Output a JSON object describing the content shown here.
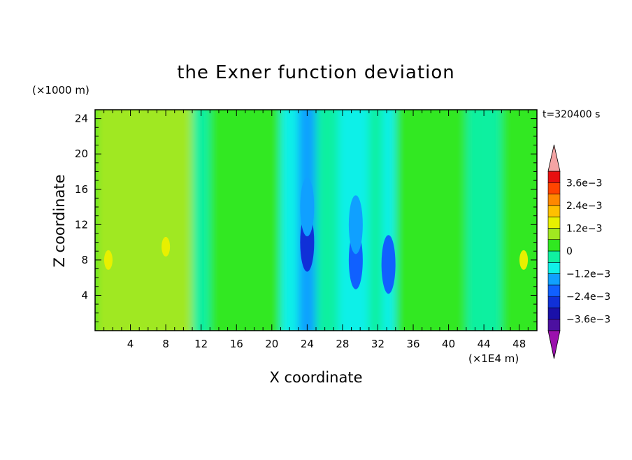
{
  "chart_data": {
    "type": "heatmap",
    "title": "the Exner function deviation",
    "xlabel": "X coordinate",
    "ylabel": "Z coordinate",
    "x_unit": "(×1E4 m)",
    "y_unit": "(×1000 m)",
    "time_label": "t=320400 s",
    "xlim": [
      0,
      50
    ],
    "ylim": [
      0,
      25
    ],
    "x_ticks": [
      4,
      8,
      12,
      16,
      20,
      24,
      28,
      32,
      36,
      40,
      44,
      48
    ],
    "y_ticks": [
      4,
      8,
      12,
      16,
      20,
      24
    ],
    "colorbar": {
      "levels": [
        -0.0042,
        -0.0036,
        -0.003,
        -0.0024,
        -0.0018,
        -0.0012,
        -0.0006,
        0,
        0.0006,
        0.0012,
        0.0018,
        0.0024,
        0.003,
        0.0036,
        0.0042
      ],
      "labels": [
        "3.6e−3",
        "2.4e−3",
        "1.2e−3",
        "0",
        "−1.2e−3",
        "−2.4e−3",
        "−3.6e−3"
      ],
      "label_values": [
        0.0036,
        0.0024,
        0.0012,
        0,
        -0.0012,
        -0.0024,
        -0.0036
      ],
      "colors": [
        "#9b10ad",
        "#4c10a0",
        "#1a10a8",
        "#1030d8",
        "#1060ff",
        "#10a0ff",
        "#10f0e8",
        "#10f0a0",
        "#30e820",
        "#a0e820",
        "#e8f000",
        "#ffc000",
        "#ff8800",
        "#ff4400",
        "#e81010",
        "#f4a4a4"
      ]
    },
    "field": {
      "x_bands": [
        {
          "x": [
            0,
            11
          ],
          "value": 0.0007
        },
        {
          "x": [
            11,
            13
          ],
          "value": -0.0003
        },
        {
          "x": [
            13,
            21
          ],
          "value": 0.0002
        },
        {
          "x": [
            21,
            23
          ],
          "value": -0.0008
        },
        {
          "x": [
            23,
            25
          ],
          "value": -0.0015
        },
        {
          "x": [
            25,
            27.5
          ],
          "value": -0.0005
        },
        {
          "x": [
            27.5,
            31
          ],
          "value": -0.001
        },
        {
          "x": [
            31,
            32.5
          ],
          "value": -0.0004
        },
        {
          "x": [
            32.5,
            34
          ],
          "value": -0.0009
        },
        {
          "x": [
            34,
            38
          ],
          "value": 0.0001
        },
        {
          "x": [
            38,
            40
          ],
          "value": 0.0004
        },
        {
          "x": [
            40,
            42
          ],
          "value": 0.0001
        },
        {
          "x": [
            42,
            43.5
          ],
          "value": -0.0003
        },
        {
          "x": [
            43.5,
            46
          ],
          "value": -0.0006
        },
        {
          "x": [
            46,
            50
          ],
          "value": 0.0005
        }
      ],
      "anomalies": [
        {
          "x": 24,
          "z": 10,
          "value": -0.0026
        },
        {
          "x": 24,
          "z": 14,
          "value": -0.0018
        },
        {
          "x": 29.5,
          "z": 8,
          "value": -0.0023
        },
        {
          "x": 29.5,
          "z": 12,
          "value": -0.0016
        },
        {
          "x": 33.2,
          "z": 7.5,
          "value": -0.0022
        },
        {
          "x": 8,
          "z": 9.5,
          "value": 0.0012
        },
        {
          "x": 1.5,
          "z": 8,
          "value": 0.0012
        },
        {
          "x": 48.5,
          "z": 8,
          "value": 0.0012
        }
      ]
    }
  }
}
